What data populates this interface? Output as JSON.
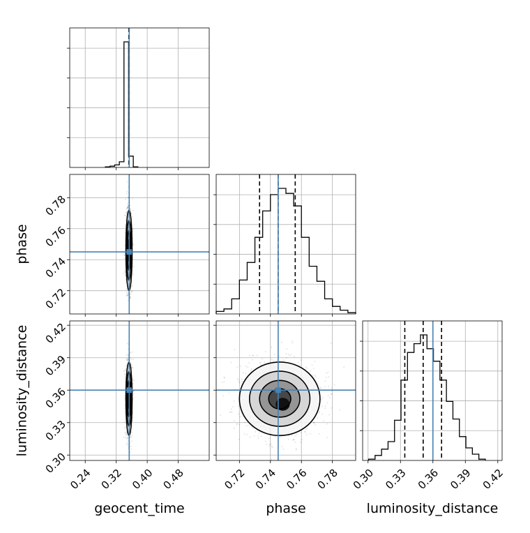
{
  "chart_data": {
    "type": "corner",
    "parameters": [
      {
        "key": "geocent_time",
        "label": "geocent_time",
        "range": [
          0.2,
          0.56
        ],
        "ticks": [
          0.24,
          0.32,
          0.4,
          0.48
        ],
        "tick_labels": [
          "0.24",
          "0.32",
          "0.40",
          "0.48"
        ]
      },
      {
        "key": "phase",
        "label": "phase",
        "range": [
          0.705,
          0.795
        ],
        "ticks": [
          0.72,
          0.74,
          0.76,
          0.78
        ],
        "tick_labels": [
          "0.72",
          "0.74",
          "0.76",
          "0.78"
        ]
      },
      {
        "key": "luminosity_distance",
        "label": "luminosity_distance",
        "range": [
          0.295,
          0.424
        ],
        "ticks": [
          0.3,
          0.33,
          0.36,
          0.39,
          0.42
        ],
        "tick_labels": [
          "0.30",
          "0.33",
          "0.36",
          "0.39",
          "0.42"
        ]
      }
    ],
    "truths": {
      "geocent_time": 0.3535,
      "phase": 0.745,
      "luminosity_distance": 0.36
    },
    "quantiles": {
      "geocent_time": [
        0.3525,
        0.353,
        0.3535
      ],
      "phase": [
        0.733,
        0.745,
        0.756
      ],
      "luminosity_distance": [
        0.334,
        0.351,
        0.368
      ]
    },
    "histograms": {
      "geocent_time": {
        "bins": [
          0.292,
          0.304,
          0.316,
          0.328,
          0.34,
          0.352,
          0.364,
          0.376
        ],
        "counts": [
          0.005,
          0.01,
          0.02,
          0.045,
          1.0,
          0.09,
          0.005
        ]
      },
      "phase": {
        "bins": [
          0.705,
          0.71,
          0.715,
          0.72,
          0.725,
          0.73,
          0.735,
          0.74,
          0.745,
          0.75,
          0.755,
          0.76,
          0.765,
          0.77,
          0.775,
          0.78,
          0.785,
          0.79,
          0.795
        ],
        "counts": [
          0.02,
          0.04,
          0.12,
          0.27,
          0.41,
          0.61,
          0.82,
          0.95,
          1.0,
          0.96,
          0.86,
          0.61,
          0.38,
          0.26,
          0.12,
          0.06,
          0.03,
          0.01
        ]
      },
      "luminosity_distance": {
        "bins": [
          0.3005,
          0.3065,
          0.3125,
          0.3185,
          0.3245,
          0.3305,
          0.3365,
          0.3425,
          0.3485,
          0.3545,
          0.3605,
          0.3665,
          0.3725,
          0.3785,
          0.3845,
          0.3905,
          0.3965,
          0.4025,
          0.4085
        ],
        "counts": [
          0.01,
          0.04,
          0.09,
          0.15,
          0.32,
          0.64,
          0.86,
          0.93,
          1.0,
          0.89,
          0.79,
          0.64,
          0.47,
          0.33,
          0.19,
          0.1,
          0.05,
          0.01
        ]
      }
    },
    "scatter_2d": {
      "center": {
        "geocent_time": 0.353,
        "phase": 0.746,
        "luminosity_distance": 0.352
      },
      "spread": {
        "geocent_time": 0.004,
        "phase": 0.013,
        "luminosity_distance": 0.017
      }
    },
    "grid": true
  }
}
